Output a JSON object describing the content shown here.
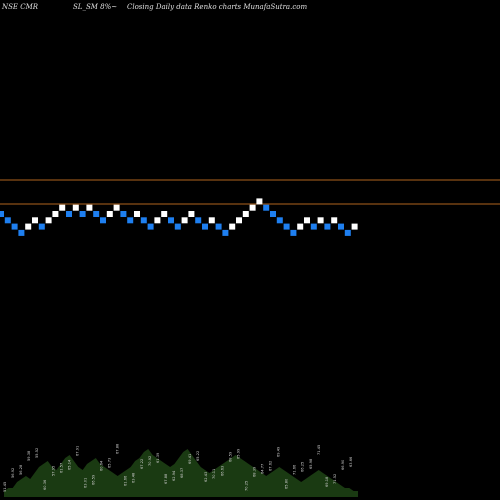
{
  "header": {
    "exchange_symbol": "NSE CMR",
    "series_info": "SL_SM 8%~",
    "chart_desc": "Closing Daily data  Renko  charts MunafaSutra.com"
  },
  "colors": {
    "up_brick": "#ffffff",
    "down_brick": "#1e7ff0",
    "hline": "#b0651e",
    "volume": "#1a3a12",
    "background": "#000000"
  },
  "chart_data": {
    "type": "renko",
    "title": "NSE CMR  SL_SM 8%~  Closing Daily data  Renko  charts MunafaSutra.com",
    "directions": [
      "down",
      "down",
      "down",
      "down",
      "up",
      "up",
      "down",
      "up",
      "up",
      "up",
      "down",
      "up",
      "down",
      "up",
      "down",
      "down",
      "up",
      "up",
      "down",
      "down",
      "up",
      "down",
      "down",
      "up",
      "up",
      "down",
      "down",
      "up",
      "up",
      "down",
      "down",
      "up",
      "down",
      "down",
      "up",
      "up",
      "up",
      "up",
      "up",
      "down",
      "down",
      "down",
      "down",
      "down",
      "up",
      "up",
      "down",
      "up",
      "down",
      "up",
      "down",
      "down",
      "up"
    ],
    "horizontal_lines": [
      "upper",
      "lower"
    ],
    "volume_labels": [
      "51.45",
      "56.92",
      "56.28",
      "59.38",
      "55.52",
      "60.36",
      "57.95",
      "61.57",
      "65.14",
      "67.91",
      "63.01",
      "66.59",
      "60.64",
      "65.73",
      "67.88",
      "61.66",
      "63.48",
      "67.22",
      "70.92",
      "61.39",
      "67.88",
      "62.94",
      "68.37",
      "69.41",
      "65.22",
      "62.43",
      "70.11",
      "66.63",
      "68.59",
      "65.99",
      "70.25",
      "68.39",
      "64.77",
      "67.62",
      "69.49",
      "65.80",
      "71.66",
      "66.25",
      "65.98",
      "71.45",
      "69.18",
      "71.52",
      "66.90",
      "63.66"
    ],
    "volume_profile": [
      2,
      3,
      3,
      5,
      6,
      7,
      6,
      8,
      10,
      11,
      12,
      10,
      9,
      11,
      13,
      14,
      12,
      10,
      9,
      11,
      12,
      13,
      11,
      10,
      9,
      8,
      7,
      8,
      9,
      10,
      12,
      13,
      15,
      16,
      14,
      13,
      12,
      11,
      10,
      11,
      13,
      15,
      16,
      14,
      12,
      10,
      9,
      8,
      9,
      10,
      11,
      12,
      13,
      14,
      13,
      12,
      11,
      10,
      9,
      8,
      7,
      8,
      9,
      10,
      9,
      8,
      7,
      6,
      5,
      6,
      7,
      8,
      9,
      8,
      7,
      6,
      5,
      4,
      3,
      3,
      2,
      2
    ]
  }
}
